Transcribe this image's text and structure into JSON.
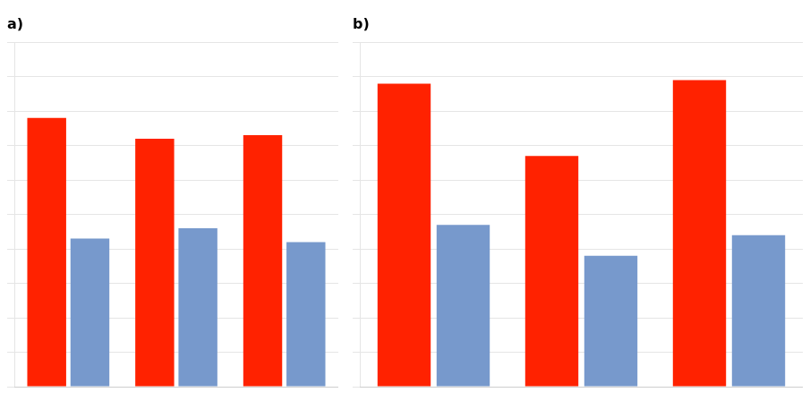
{
  "chart_data": [
    {
      "type": "bar",
      "title": "a)",
      "categories": [
        null,
        null,
        null
      ],
      "series": [
        {
          "color": "#FF2200",
          "values": [
            0.78,
            0.72,
            0.73
          ]
        },
        {
          "color": "#7799CC",
          "values": [
            0.43,
            0.46,
            0.42
          ]
        }
      ],
      "ylim": [
        0,
        1.0
      ],
      "yticks": [
        0,
        0.1,
        0.2,
        0.3,
        0.4,
        0.5,
        0.6,
        0.7,
        0.8,
        0.9,
        1.0
      ],
      "grid": true,
      "tick_labels": false
    },
    {
      "type": "bar",
      "title": "b)",
      "categories": [
        null,
        null,
        null
      ],
      "series": [
        {
          "color": "#FF2200",
          "values": [
            0.88,
            0.67,
            0.89
          ]
        },
        {
          "color": "#7799CC",
          "values": [
            0.47,
            0.38,
            0.44
          ]
        }
      ],
      "ylim": [
        0,
        1.0
      ],
      "yticks": [
        0,
        0.1,
        0.2,
        0.3,
        0.4,
        0.5,
        0.6,
        0.7,
        0.8,
        0.9,
        1.0
      ],
      "grid": true,
      "tick_labels": false
    }
  ]
}
